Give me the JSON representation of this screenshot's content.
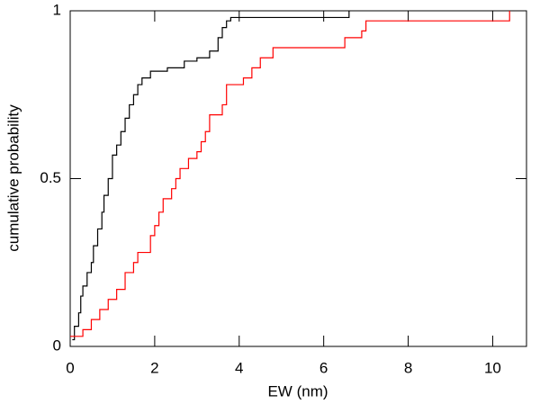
{
  "chart_data": {
    "type": "step",
    "xlabel": "EW (nm)",
    "ylabel": "cumulative probability",
    "xlim": [
      0,
      10.8
    ],
    "xticks": [
      0,
      2,
      4,
      6,
      8,
      10
    ],
    "ylim": [
      0,
      1
    ],
    "yticks": [
      0,
      0.5,
      1
    ],
    "series": [
      {
        "color": "#000000",
        "x": [
          0.05,
          0.1,
          0.2,
          0.25,
          0.3,
          0.4,
          0.5,
          0.55,
          0.65,
          0.75,
          0.8,
          0.9,
          1.0,
          1.1,
          1.2,
          1.3,
          1.4,
          1.5,
          1.6,
          1.7,
          1.9,
          2.3,
          2.7,
          3.0,
          3.3,
          3.5,
          3.6,
          3.7,
          3.8,
          6.6
        ],
        "values": [
          0.02,
          0.06,
          0.1,
          0.15,
          0.18,
          0.22,
          0.25,
          0.3,
          0.35,
          0.4,
          0.45,
          0.5,
          0.57,
          0.6,
          0.64,
          0.68,
          0.72,
          0.75,
          0.78,
          0.8,
          0.82,
          0.83,
          0.85,
          0.86,
          0.88,
          0.92,
          0.95,
          0.97,
          0.98,
          1.0
        ]
      },
      {
        "color": "#ff0000",
        "x": [
          0,
          0.3,
          0.5,
          0.7,
          0.9,
          1.1,
          1.3,
          1.5,
          1.6,
          1.9,
          2.0,
          2.1,
          2.2,
          2.4,
          2.5,
          2.6,
          2.8,
          3.0,
          3.1,
          3.2,
          3.3,
          3.6,
          3.7,
          4.1,
          4.3,
          4.5,
          4.8,
          6.5,
          6.9,
          7.0,
          10.4
        ],
        "values": [
          0.03,
          0.05,
          0.08,
          0.11,
          0.14,
          0.17,
          0.22,
          0.25,
          0.28,
          0.33,
          0.36,
          0.4,
          0.44,
          0.47,
          0.5,
          0.53,
          0.56,
          0.58,
          0.61,
          0.64,
          0.69,
          0.72,
          0.78,
          0.8,
          0.83,
          0.86,
          0.89,
          0.92,
          0.94,
          0.97,
          1.0
        ]
      }
    ]
  }
}
